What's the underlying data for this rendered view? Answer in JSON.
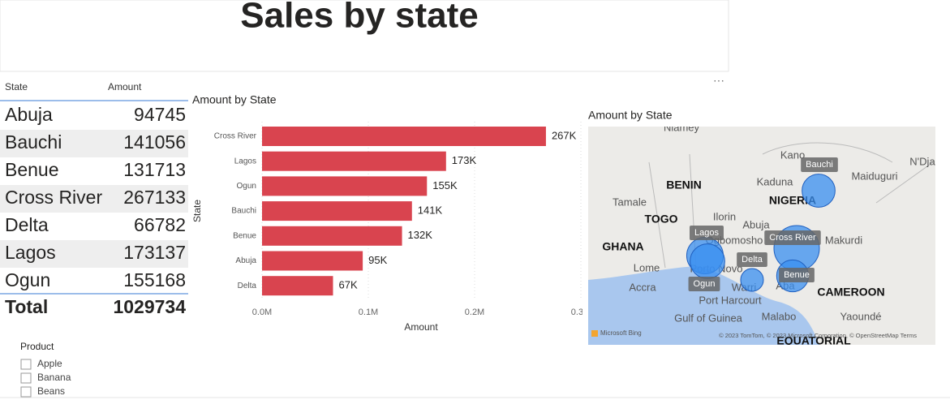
{
  "header": {
    "title": "Sales by state"
  },
  "table": {
    "columns": [
      "State",
      "Amount"
    ],
    "rows": [
      [
        "Abuja",
        94745
      ],
      [
        "Bauchi",
        141056
      ],
      [
        "Benue",
        131713
      ],
      [
        "Cross River",
        267133
      ],
      [
        "Delta",
        66782
      ],
      [
        "Lagos",
        173137
      ],
      [
        "Ogun",
        155168
      ]
    ],
    "total": [
      "Total",
      1029734
    ]
  },
  "slicer": {
    "title": "Product",
    "items": [
      "Apple",
      "Banana",
      "Beans"
    ]
  },
  "chart_data": {
    "type": "hbar",
    "title": "Amount by State",
    "x_label": "Amount",
    "y_label": "State",
    "categories": [
      "Cross River",
      "Lagos",
      "Ogun",
      "Bauchi",
      "Benue",
      "Abuja",
      "Delta"
    ],
    "values": [
      267133,
      173137,
      155168,
      141056,
      131713,
      94745,
      66782
    ],
    "value_labels": [
      "267K",
      "173K",
      "155K",
      "141K",
      "132K",
      "95K",
      "67K"
    ],
    "color": "#d9444f",
    "grid": true,
    "xlim": [
      0,
      300000
    ],
    "xticks": [
      {
        "value": 0,
        "label": "0.0M"
      },
      {
        "value": 100000,
        "label": "0.1M"
      },
      {
        "value": 200000,
        "label": "0.2M"
      },
      {
        "value": 300000,
        "label": "0.3M"
      }
    ]
  },
  "map": {
    "title": "Amount by State",
    "bubbles": [
      "Bauchi",
      "Lagos",
      "Cross River",
      "Delta",
      "Ogun",
      "Benue"
    ],
    "places": [
      "Niamey",
      "Kano",
      "Maiduguri",
      "N'Dja",
      "BENIN",
      "Kaduna",
      "NIGERIA",
      "Tamale",
      "TOGO",
      "Ilorin",
      "Abuja",
      "GHANA",
      "Ogbomosho",
      "Makurdi",
      "Lome",
      "Porto Novo",
      "Warri",
      "Aba",
      "Accra",
      "Port Harcourt",
      "CAMEROON",
      "Gulf of Guinea",
      "Malabo",
      "Yaoundé",
      "EQUATORIAL"
    ],
    "brand": "Microsoft Bing",
    "copyright": "© 2023 TomTom, © 2023 Microsoft Corporation, © OpenStreetMap  Terms"
  }
}
